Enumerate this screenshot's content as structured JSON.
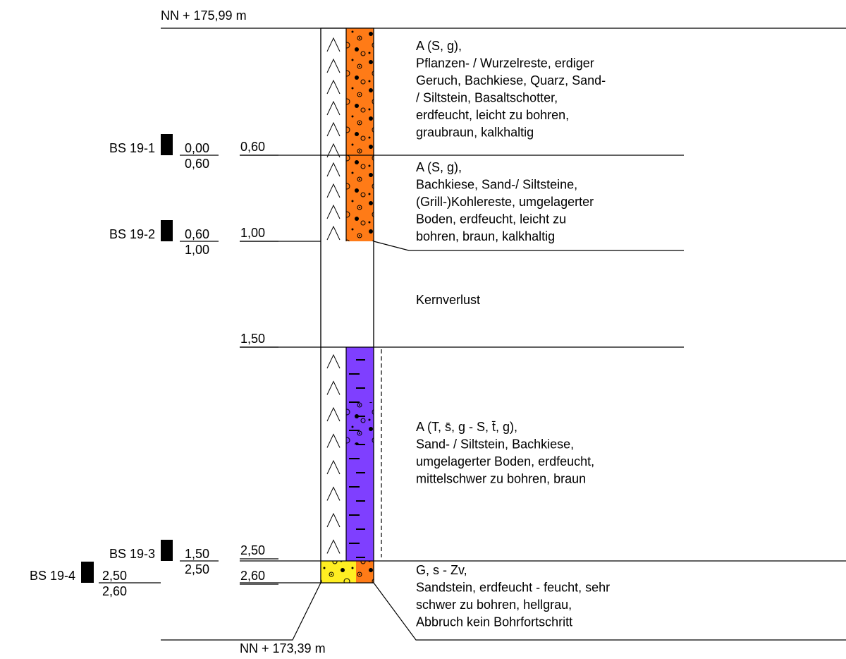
{
  "top_level": "NN + 175,99 m",
  "bottom_level": "NN + 173,39 m",
  "layers": [
    {
      "depth": "0,60",
      "description": [
        "A (S, g),",
        "Pflanzen- / Wurzelreste, erdiger",
        "Geruch,  Bachkiese, Quarz, Sand-",
        "/ Siltstein, Basaltschotter,",
        "erdfeucht, leicht zu bohren,",
        "graubraun, kalkhaltig"
      ]
    },
    {
      "depth": "1,00",
      "description": [
        "A (S, g),",
        "Bachkiese, Sand-/ Siltsteine,",
        "(Grill-)Kohlereste, umgelagerter",
        "Boden, erdfeucht, leicht zu",
        "bohren, braun, kalkhaltig"
      ]
    },
    {
      "depth": "1,50",
      "description": [
        "Kernverlust"
      ]
    },
    {
      "depth": "2,50",
      "description": [
        "A (T, s̄, g - S, t̄, g),",
        "Sand- / Siltstein, Bachkiese,",
        "umgelagerter Boden, erdfeucht,",
        "mittelschwer zu bohren, braun"
      ]
    },
    {
      "depth": "2,60",
      "description": [
        "G, s - Zv,",
        "Sandstein, erdfeucht - feucht, sehr",
        "schwer zu bohren, hellgrau,",
        "Abbruch kein Bohrfortschritt"
      ]
    }
  ],
  "samples": [
    {
      "name": "BS 19-1",
      "from": "0,00",
      "to": "0,60"
    },
    {
      "name": "BS 19-2",
      "from": "0,60",
      "to": "1,00"
    },
    {
      "name": "BS 19-3",
      "from": "1,50",
      "to": "2,50"
    },
    {
      "name": "BS 19-4",
      "from": "2,50",
      "to": "2,60"
    }
  ]
}
